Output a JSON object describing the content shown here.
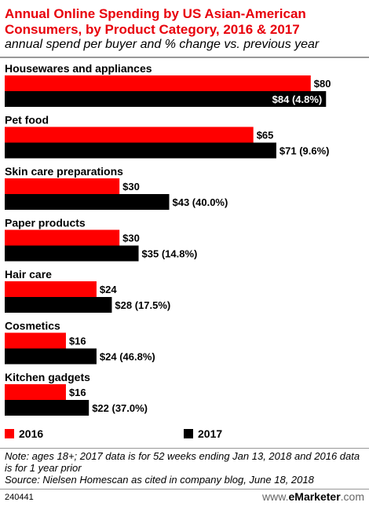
{
  "header": {
    "title": "Annual Online Spending by US Asian-American Consumers, by Product Category, 2016 & 2017",
    "subtitle": "annual spend per buyer and % change vs. previous year"
  },
  "legend": {
    "items": [
      {
        "label": "2016",
        "color": "#ff0000"
      },
      {
        "label": "2017",
        "color": "#000000"
      }
    ]
  },
  "chart_data": {
    "type": "bar",
    "orientation": "horizontal",
    "title": "Annual Online Spending by US Asian-American Consumers, by Product Category, 2016 & 2017",
    "subtitle": "annual spend per buyer and % change vs. previous year",
    "xlabel": "",
    "ylabel": "",
    "xlim": [
      0,
      94
    ],
    "grid": false,
    "legend_position": "bottom",
    "categories": [
      "Housewares and appliances",
      "Pet food",
      "Skin care preparations",
      "Paper products",
      "Hair care",
      "Cosmetics",
      "Kitchen gadgets"
    ],
    "series": [
      {
        "name": "2016",
        "color": "#ff0000",
        "values": [
          80,
          65,
          30,
          30,
          24,
          16,
          16
        ],
        "labels": [
          "$80",
          "$65",
          "$30",
          "$30",
          "$24",
          "$16",
          "$16"
        ]
      },
      {
        "name": "2017",
        "color": "#000000",
        "values": [
          84,
          71,
          43,
          35,
          28,
          24,
          22
        ],
        "labels": [
          "$84 (4.8%)",
          "$71 (9.6%)",
          "$43 (40.0%)",
          "$35 (14.8%)",
          "$28 (17.5%)",
          "$24 (46.8%)",
          "$22 (37.0%)"
        ]
      }
    ]
  },
  "notes": {
    "note": "Note: ages 18+; 2017 data is for 52 weeks ending Jan 13, 2018 and 2016 data is for 1 year prior",
    "source": "Source: Nielsen Homescan as cited in company blog, June 18, 2018"
  },
  "footer": {
    "chart_id": "240441",
    "brand_prefix": "www.",
    "brand_name": "eMarketer",
    "brand_suffix": ".com"
  }
}
